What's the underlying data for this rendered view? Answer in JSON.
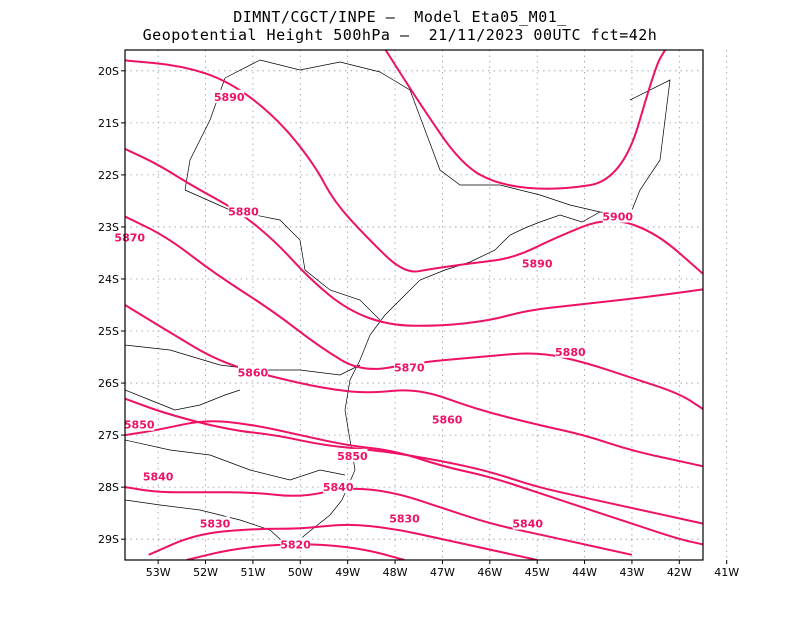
{
  "title": {
    "line1": "DIMNT/CGCT/INPE –  Model Eta05_M01_",
    "line2": "Geopotential Height 500hPa –  21/11/2023 00UTC fct=42h"
  },
  "map": {
    "lon_range": [
      -53.7,
      -41.5
    ],
    "lat_range": [
      -29.4,
      -19.6
    ],
    "lat_ticks": [
      "20S",
      "21S",
      "22S",
      "23S",
      "24S",
      "25S",
      "26S",
      "27S",
      "28S",
      "29S"
    ],
    "lon_ticks": [
      "53W",
      "52W",
      "51W",
      "50W",
      "49W",
      "48W",
      "47W",
      "46W",
      "45W",
      "44W",
      "43W",
      "42W",
      "41W"
    ],
    "grid": true,
    "contour_color": "#ee1166",
    "contours": [
      {
        "value": "5900",
        "points": [
          [
            -53.7,
            -19.8
          ],
          [
            -52.5,
            -19.9
          ],
          [
            -51.5,
            -20.2
          ],
          [
            -50.5,
            -20.9
          ],
          [
            -49.7,
            -21.8
          ],
          [
            -49.3,
            -22.5
          ],
          [
            -48.6,
            -23.2
          ],
          [
            -47.8,
            -23.9
          ],
          [
            -47.2,
            -23.8
          ],
          [
            -46.4,
            -23.7
          ],
          [
            -45.5,
            -23.6
          ],
          [
            -44.6,
            -23.2
          ],
          [
            -43.5,
            -22.8
          ],
          [
            -42.5,
            -23.1
          ],
          [
            -41.5,
            -23.9
          ]
        ],
        "labels": [
          {
            "text": "5900",
            "lon": -43.3,
            "lat": -22.8
          }
        ]
      },
      {
        "value": "5900b",
        "points": [
          [
            -48.2,
            -19.6
          ],
          [
            -47.5,
            -20.6
          ],
          [
            -46.6,
            -21.8
          ],
          [
            -45.8,
            -22.2
          ],
          [
            -44.6,
            -22.3
          ],
          [
            -43.2,
            -22.1
          ],
          [
            -42.5,
            -19.9
          ],
          [
            -42.3,
            -19.6
          ]
        ],
        "labels": []
      },
      {
        "value": "5890",
        "points": [
          [
            -53.7,
            -21.5
          ],
          [
            -53.0,
            -21.8
          ],
          [
            -52.3,
            -22.2
          ],
          [
            -51.3,
            -22.7
          ],
          [
            -50.5,
            -23.3
          ],
          [
            -49.8,
            -24.0
          ],
          [
            -49.0,
            -24.6
          ],
          [
            -48.1,
            -24.9
          ],
          [
            -47.0,
            -24.9
          ],
          [
            -46.0,
            -24.8
          ],
          [
            -45.2,
            -24.6
          ],
          [
            -44.2,
            -24.5
          ],
          [
            -43.2,
            -24.4
          ],
          [
            -42.3,
            -24.3
          ],
          [
            -41.5,
            -24.2
          ]
        ],
        "labels": [
          {
            "text": "5890",
            "lon": -51.5,
            "lat": -20.5
          },
          {
            "text": "5890",
            "lon": -45.0,
            "lat": -23.7
          }
        ]
      },
      {
        "value": "5880",
        "points": [
          [
            -53.7,
            -22.8
          ],
          [
            -52.8,
            -23.2
          ],
          [
            -51.8,
            -23.9
          ],
          [
            -50.6,
            -24.6
          ],
          [
            -49.6,
            -25.3
          ],
          [
            -48.7,
            -25.8
          ],
          [
            -47.5,
            -25.6
          ],
          [
            -46.2,
            -25.5
          ],
          [
            -45.0,
            -25.4
          ],
          [
            -44.0,
            -25.6
          ],
          [
            -43.0,
            -25.9
          ],
          [
            -42.0,
            -26.2
          ],
          [
            -41.5,
            -26.5
          ]
        ],
        "labels": [
          {
            "text": "5880",
            "lon": -51.2,
            "lat": -22.7
          },
          {
            "text": "5880",
            "lon": -44.3,
            "lat": -25.4
          }
        ]
      },
      {
        "value": "5870",
        "points": [
          [
            -53.7,
            -24.5
          ],
          [
            -52.8,
            -25.0
          ],
          [
            -51.7,
            -25.6
          ],
          [
            -50.5,
            -25.9
          ],
          [
            -49.5,
            -26.1
          ],
          [
            -48.6,
            -26.2
          ],
          [
            -47.5,
            -26.1
          ],
          [
            -46.3,
            -26.5
          ],
          [
            -45.0,
            -26.8
          ],
          [
            -44.0,
            -27.0
          ],
          [
            -43.0,
            -27.3
          ],
          [
            -42.0,
            -27.5
          ],
          [
            -41.5,
            -27.6
          ]
        ],
        "labels": [
          {
            "text": "5870",
            "lon": -53.6,
            "lat": -23.2
          },
          {
            "text": "5870",
            "lon": -47.7,
            "lat": -25.7
          }
        ]
      },
      {
        "value": "5860",
        "points": [
          [
            -53.7,
            -26.3
          ],
          [
            -52.8,
            -26.6
          ],
          [
            -51.5,
            -26.9
          ],
          [
            -50.5,
            -27.0
          ],
          [
            -49.5,
            -27.2
          ],
          [
            -48.3,
            -27.3
          ],
          [
            -47.0,
            -27.5
          ],
          [
            -46.0,
            -27.7
          ],
          [
            -45.0,
            -28.0
          ],
          [
            -44.0,
            -28.2
          ],
          [
            -43.0,
            -28.4
          ],
          [
            -42.0,
            -28.6
          ],
          [
            -41.5,
            -28.7
          ]
        ],
        "labels": [
          {
            "text": "5860",
            "lon": -51.0,
            "lat": -25.8
          },
          {
            "text": "5860",
            "lon": -46.9,
            "lat": -26.7
          }
        ]
      },
      {
        "value": "5850",
        "points": [
          [
            -53.7,
            -27.0
          ],
          [
            -53.0,
            -26.9
          ],
          [
            -52.0,
            -26.7
          ],
          [
            -51.0,
            -26.8
          ],
          [
            -50.0,
            -27.0
          ],
          [
            -49.0,
            -27.2
          ],
          [
            -48.0,
            -27.3
          ],
          [
            -47.0,
            -27.6
          ],
          [
            -46.0,
            -27.8
          ],
          [
            -45.0,
            -28.1
          ],
          [
            -44.0,
            -28.4
          ],
          [
            -43.0,
            -28.7
          ],
          [
            -42.0,
            -29.0
          ],
          [
            -41.5,
            -29.1
          ]
        ],
        "labels": [
          {
            "text": "5850",
            "lon": -53.4,
            "lat": -26.8
          },
          {
            "text": "5850",
            "lon": -48.9,
            "lat": -27.4
          }
        ]
      },
      {
        "value": "5840",
        "points": [
          [
            -53.7,
            -28.0
          ],
          [
            -53.0,
            -28.1
          ],
          [
            -52.0,
            -28.1
          ],
          [
            -51.0,
            -28.1
          ],
          [
            -50.0,
            -28.2
          ],
          [
            -49.0,
            -28.0
          ],
          [
            -48.0,
            -28.1
          ],
          [
            -47.0,
            -28.4
          ],
          [
            -46.0,
            -28.7
          ],
          [
            -45.0,
            -28.9
          ],
          [
            -44.0,
            -29.1
          ],
          [
            -43.0,
            -29.3
          ]
        ],
        "labels": [
          {
            "text": "5840",
            "lon": -53.0,
            "lat": -27.8
          },
          {
            "text": "5840",
            "lon": -49.2,
            "lat": -28.0
          },
          {
            "text": "5840",
            "lon": -45.2,
            "lat": -28.7
          }
        ]
      },
      {
        "value": "5830",
        "points": [
          [
            -53.2,
            -29.3
          ],
          [
            -52.2,
            -28.9
          ],
          [
            -51.0,
            -28.8
          ],
          [
            -50.0,
            -28.8
          ],
          [
            -49.0,
            -28.7
          ],
          [
            -48.0,
            -28.8
          ],
          [
            -47.0,
            -29.0
          ],
          [
            -46.0,
            -29.2
          ],
          [
            -45.0,
            -29.4
          ]
        ],
        "labels": [
          {
            "text": "5830",
            "lon": -51.8,
            "lat": -28.7
          },
          {
            "text": "5830",
            "lon": -47.8,
            "lat": -28.6
          }
        ]
      },
      {
        "value": "5820",
        "points": [
          [
            -52.4,
            -29.4
          ],
          [
            -51.5,
            -29.2
          ],
          [
            -50.5,
            -29.1
          ],
          [
            -49.5,
            -29.1
          ],
          [
            -48.6,
            -29.2
          ],
          [
            -47.8,
            -29.4
          ]
        ],
        "labels": [
          {
            "text": "5820",
            "lon": -50.1,
            "lat": -29.1
          }
        ]
      }
    ]
  }
}
